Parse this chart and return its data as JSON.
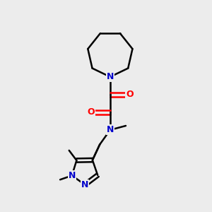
{
  "background_color": "#ececec",
  "bond_color": "#000000",
  "N_color": "#0000cc",
  "O_color": "#ff0000",
  "line_width": 1.8,
  "figsize": [
    3.0,
    3.0
  ],
  "dpi": 100,
  "xlim": [
    0,
    10
  ],
  "ylim": [
    0,
    10
  ]
}
